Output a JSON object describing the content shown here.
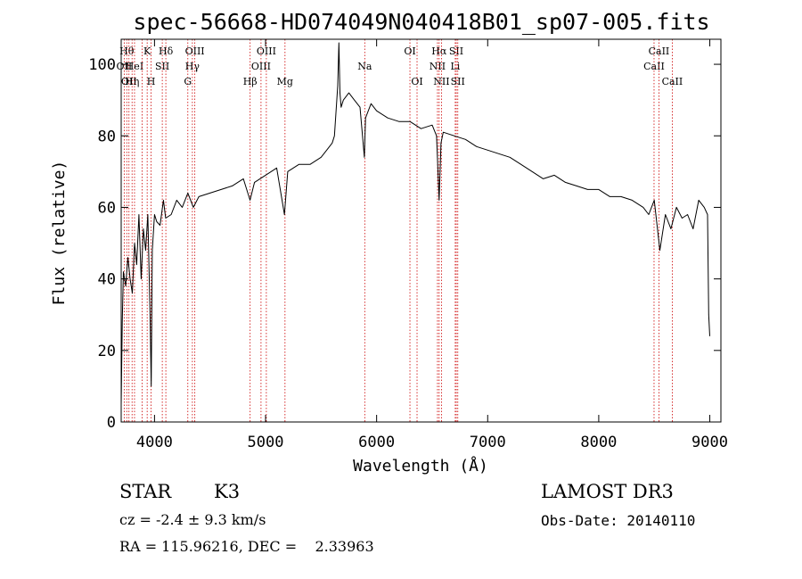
{
  "chart_data": {
    "type": "line",
    "title": "spec-56668-HD074049N040418B01_sp07-005.fits",
    "xlabel": "Wavelength (Å)",
    "ylabel": "Flux (relative)",
    "xlim": [
      3700,
      9100
    ],
    "ylim": [
      0,
      107
    ],
    "xticks": [
      4000,
      5000,
      6000,
      7000,
      8000,
      9000
    ],
    "yticks": [
      0,
      20,
      40,
      60,
      80,
      100
    ],
    "series": [
      {
        "color": "#000000",
        "x": [
          3700,
          3710,
          3720,
          3740,
          3760,
          3780,
          3800,
          3820,
          3840,
          3860,
          3880,
          3900,
          3920,
          3940,
          3960,
          3970,
          3980,
          4000,
          4020,
          4050,
          4080,
          4100,
          4150,
          4200,
          4250,
          4300,
          4350,
          4400,
          4500,
          4600,
          4700,
          4800,
          4860,
          4900,
          5000,
          5100,
          5170,
          5200,
          5300,
          5400,
          5500,
          5550,
          5600,
          5620,
          5650,
          5660,
          5670,
          5680,
          5700,
          5750,
          5800,
          5850,
          5890,
          5900,
          5950,
          6000,
          6100,
          6200,
          6300,
          6400,
          6500,
          6540,
          6563,
          6580,
          6600,
          6700,
          6800,
          6900,
          7000,
          7100,
          7200,
          7300,
          7400,
          7500,
          7600,
          7700,
          7800,
          7900,
          8000,
          8100,
          8200,
          8300,
          8400,
          8450,
          8500,
          8550,
          8600,
          8650,
          8700,
          8750,
          8800,
          8850,
          8900,
          8950,
          8980,
          8990,
          9000
        ],
        "y": [
          5,
          28,
          42,
          38,
          46,
          40,
          36,
          50,
          44,
          58,
          40,
          54,
          48,
          58,
          30,
          10,
          48,
          58,
          56,
          55,
          62,
          57,
          58,
          62,
          60,
          64,
          60,
          63,
          64,
          65,
          66,
          68,
          62,
          67,
          69,
          71,
          58,
          70,
          72,
          72,
          74,
          76,
          78,
          80,
          94,
          106,
          92,
          88,
          90,
          92,
          90,
          88,
          74,
          85,
          89,
          87,
          85,
          84,
          84,
          82,
          83,
          80,
          62,
          78,
          81,
          80,
          79,
          77,
          76,
          75,
          74,
          72,
          70,
          68,
          69,
          67,
          66,
          65,
          65,
          63,
          63,
          62,
          60,
          58,
          62,
          48,
          58,
          54,
          60,
          57,
          58,
          54,
          62,
          60,
          58,
          30,
          24
        ]
      }
    ],
    "line_markers": [
      {
        "x": 3727,
        "label": "OII",
        "row": 2
      },
      {
        "x": 3750,
        "label": "Hθ",
        "row": 1
      },
      {
        "x": 3770,
        "label": "OII",
        "row": 3
      },
      {
        "x": 3798,
        "label": "Hη",
        "row": 3
      },
      {
        "x": 3820,
        "label": "HeI",
        "row": 2
      },
      {
        "x": 3889,
        "label": "",
        "row": 0
      },
      {
        "x": 3934,
        "label": "K",
        "row": 1
      },
      {
        "x": 3969,
        "label": "H",
        "row": 3
      },
      {
        "x": 4070,
        "label": "SII",
        "row": 2
      },
      {
        "x": 4102,
        "label": "Hδ",
        "row": 1
      },
      {
        "x": 4300,
        "label": "G",
        "row": 3
      },
      {
        "x": 4341,
        "label": "Hγ",
        "row": 2
      },
      {
        "x": 4363,
        "label": "OIII",
        "row": 1
      },
      {
        "x": 4861,
        "label": "Hβ",
        "row": 3
      },
      {
        "x": 4959,
        "label": "OIII",
        "row": 2
      },
      {
        "x": 5007,
        "label": "OIII",
        "row": 1
      },
      {
        "x": 5175,
        "label": "Mg",
        "row": 3
      },
      {
        "x": 5893,
        "label": "Na",
        "row": 2
      },
      {
        "x": 6300,
        "label": "OI",
        "row": 1
      },
      {
        "x": 6364,
        "label": "OI",
        "row": 3
      },
      {
        "x": 6548,
        "label": "NII",
        "row": 2
      },
      {
        "x": 6563,
        "label": "Hα",
        "row": 1
      },
      {
        "x": 6584,
        "label": "NII",
        "row": 3
      },
      {
        "x": 6708,
        "label": "Li",
        "row": 2
      },
      {
        "x": 6717,
        "label": "SII",
        "row": 1
      },
      {
        "x": 6731,
        "label": "SII",
        "row": 3
      },
      {
        "x": 8498,
        "label": "CaII",
        "row": 2
      },
      {
        "x": 8542,
        "label": "CaII",
        "row": 1
      },
      {
        "x": 8662,
        "label": "CaII",
        "row": 3
      }
    ],
    "marker_color": "#cc0000",
    "grid": false
  },
  "info": {
    "object_class": "STAR",
    "subclass": "K3",
    "survey": "LAMOST DR3",
    "cz": "cz = -2.4 ± 9.3 km/s",
    "obs_date": "Obs-Date: 20140110",
    "coords": "RA = 115.96216, DEC =    2.33963"
  }
}
